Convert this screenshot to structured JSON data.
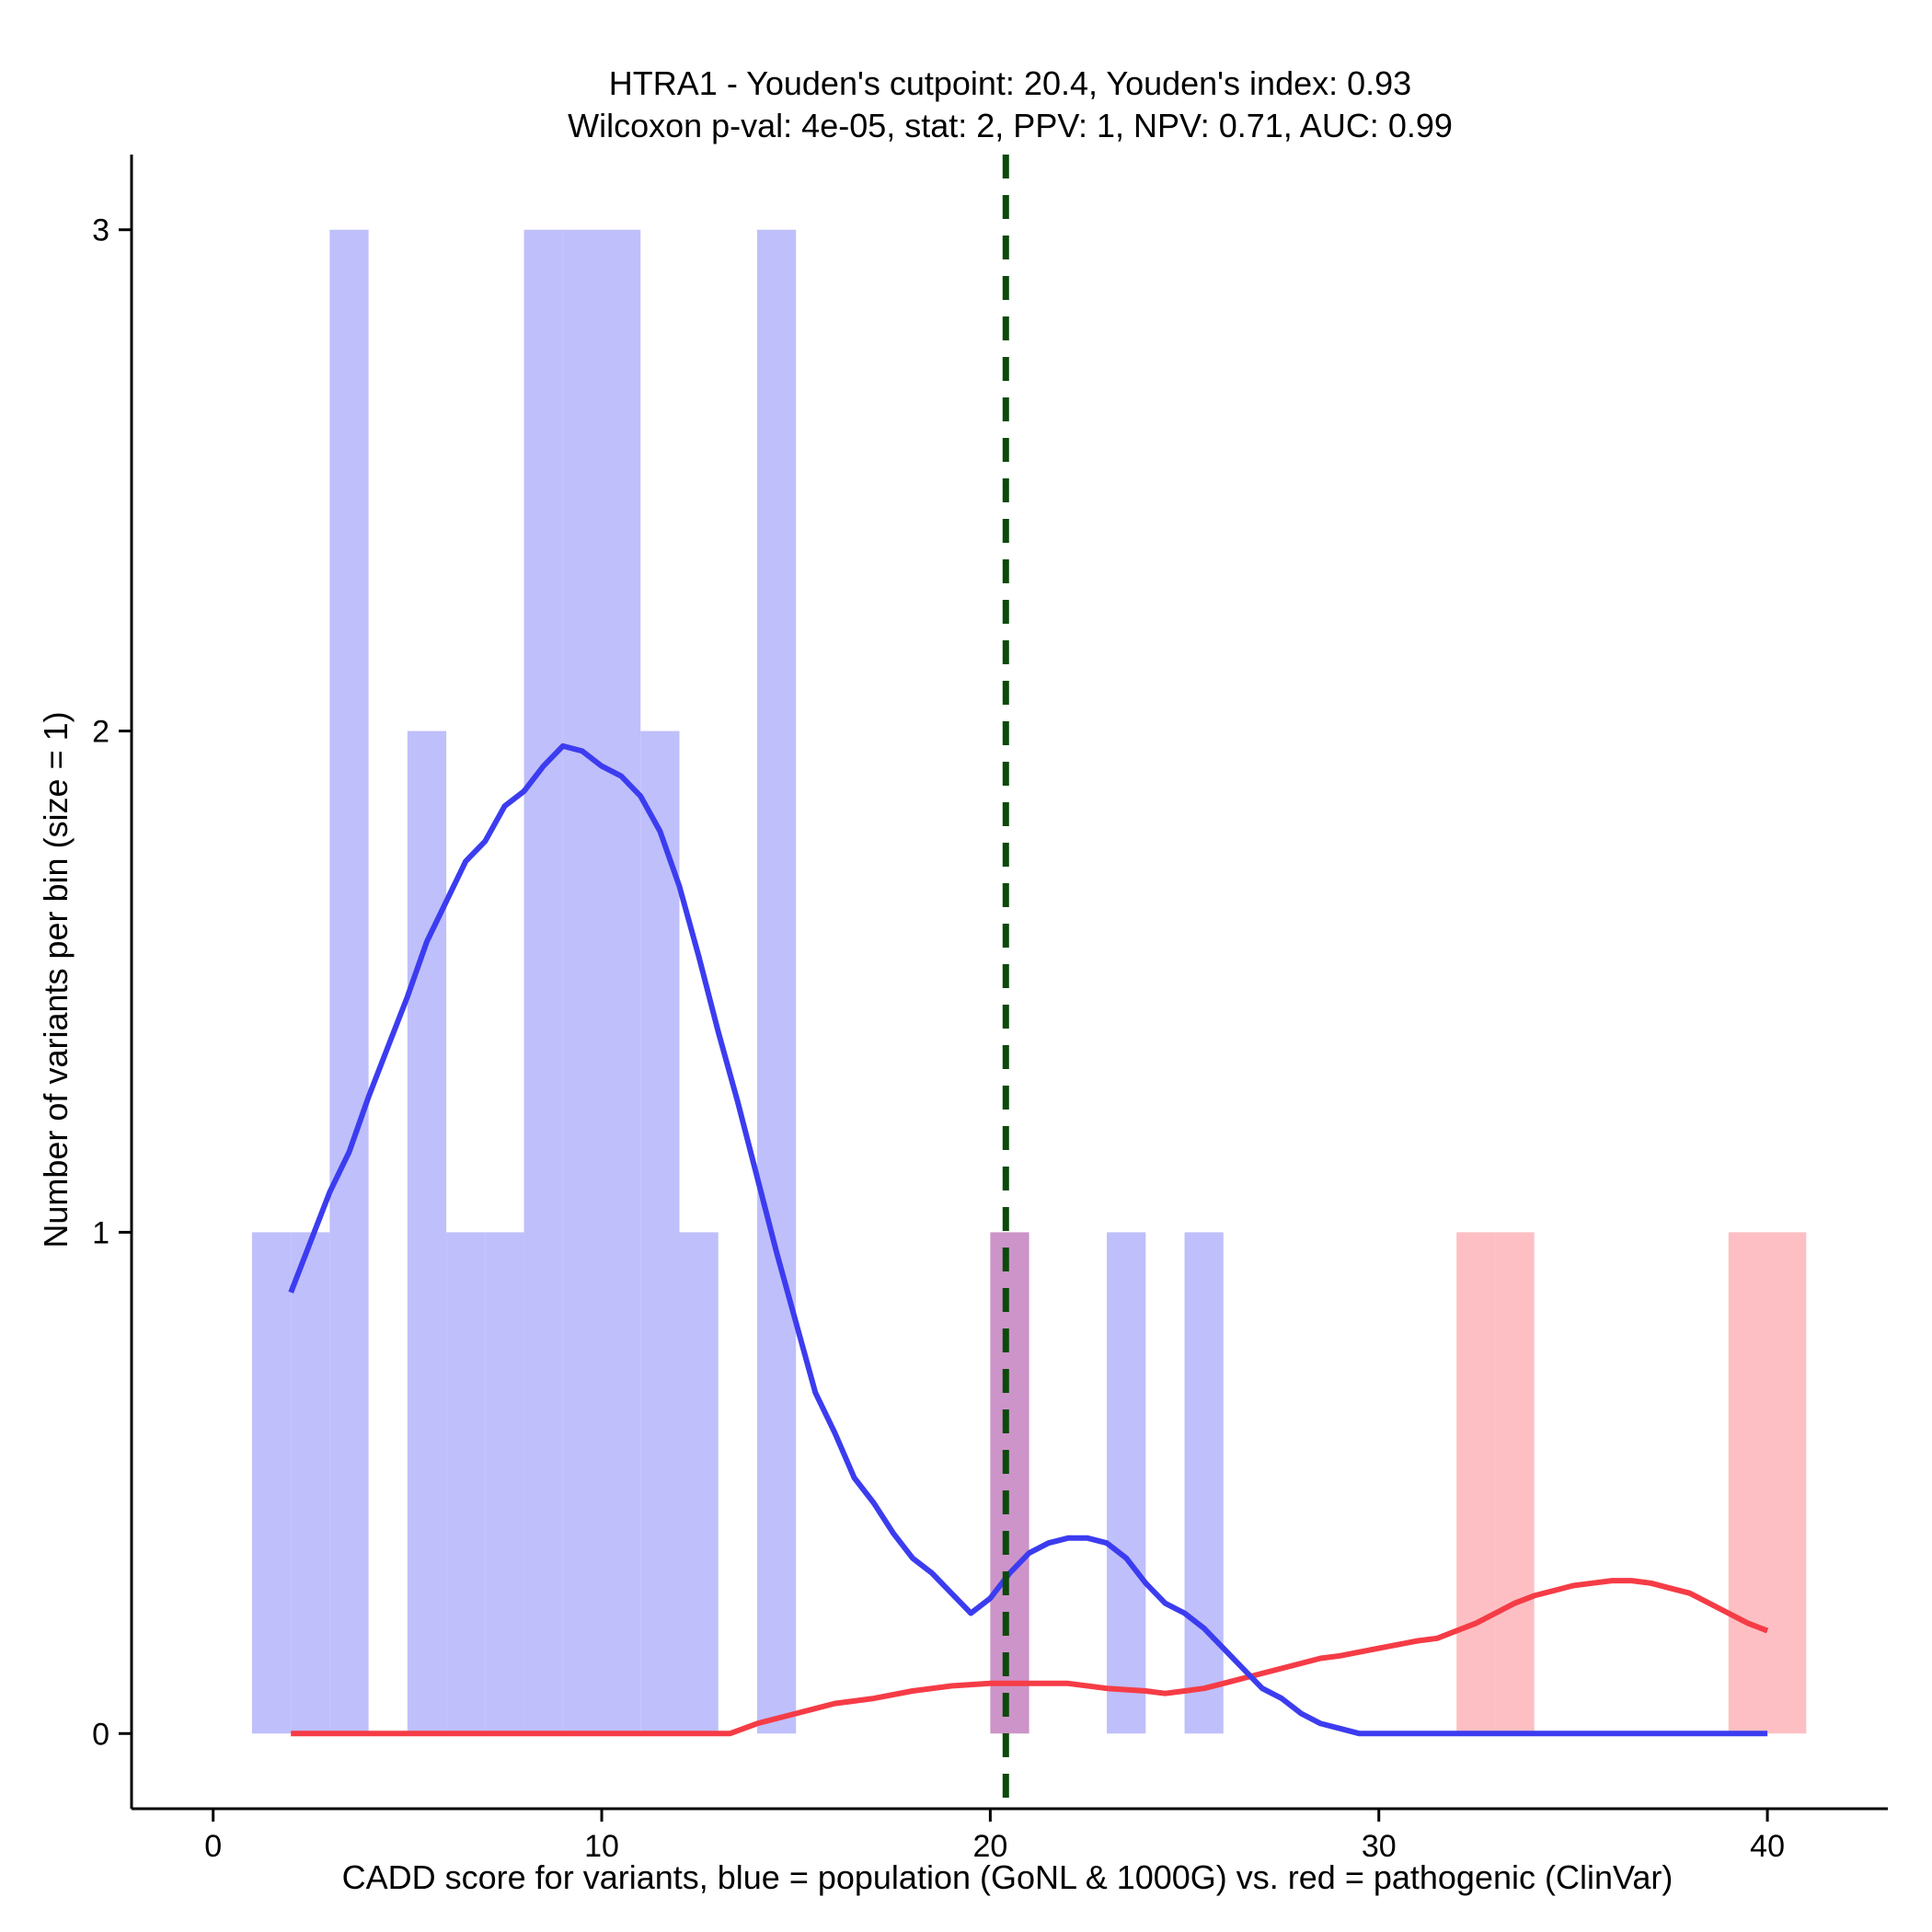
{
  "chart_data": {
    "type": "histogram-density",
    "title_line1": "HTRA1 - Youden's cutpoint: 20.4, Youden's index: 0.93",
    "title_line2": "Wilcoxon p-val: 4e-05, stat: 2, PPV: 1, NPV: 0.71, AUC: 0.99",
    "xlabel": "CADD score for variants, blue = population (GoNL & 1000G) vs. red = pathogenic (ClinVar)",
    "ylabel": "Number of variants per bin (size = 1)",
    "xlim": [
      -2.1,
      43.1
    ],
    "ylim": [
      -0.15,
      3.15
    ],
    "x_ticks": [
      0,
      10,
      20,
      30,
      40
    ],
    "x_tick_labels": [
      "0",
      "10",
      "20",
      "30",
      "40"
    ],
    "y_ticks": [
      0,
      1,
      2,
      3
    ],
    "y_tick_labels": [
      "0",
      "1",
      "2",
      "3"
    ],
    "bin_size": 1,
    "cutpoint": 20.4,
    "colors": {
      "population_bar": "#bfbffb",
      "pathogenic_bar": "#fdbfc3",
      "overlap_bar": "#cc94c8",
      "population_line": "#3c3cf0",
      "pathogenic_line": "#f53c46",
      "cutpoint_line": "#0a4a0a"
    },
    "series": [
      {
        "name": "population (GoNL & 1000G)",
        "kind": "histogram",
        "bins": [
          {
            "start": 1,
            "count": 1
          },
          {
            "start": 2,
            "count": 1
          },
          {
            "start": 3,
            "count": 3
          },
          {
            "start": 5,
            "count": 2
          },
          {
            "start": 6,
            "count": 1
          },
          {
            "start": 7,
            "count": 1
          },
          {
            "start": 8,
            "count": 3
          },
          {
            "start": 9,
            "count": 3
          },
          {
            "start": 10,
            "count": 3
          },
          {
            "start": 11,
            "count": 2
          },
          {
            "start": 12,
            "count": 1
          },
          {
            "start": 14,
            "count": 3
          },
          {
            "start": 20,
            "count": 1
          },
          {
            "start": 23,
            "count": 1
          },
          {
            "start": 25,
            "count": 1
          }
        ]
      },
      {
        "name": "pathogenic (ClinVar)",
        "kind": "histogram",
        "bins": [
          {
            "start": 20,
            "count": 1
          },
          {
            "start": 32,
            "count": 1
          },
          {
            "start": 33,
            "count": 1
          },
          {
            "start": 39,
            "count": 1
          },
          {
            "start": 40,
            "count": 1
          }
        ]
      },
      {
        "name": "population density",
        "kind": "line",
        "x": [
          2,
          2.5,
          3,
          3.5,
          4,
          4.5,
          5,
          5.5,
          6,
          6.5,
          7,
          7.5,
          8,
          8.5,
          9,
          9.5,
          10,
          10.5,
          11,
          11.5,
          12,
          12.5,
          13,
          13.5,
          14,
          14.5,
          15,
          15.5,
          16,
          16.5,
          17,
          17.5,
          18,
          18.5,
          19,
          19.5,
          20,
          20.5,
          21,
          21.5,
          22,
          22.5,
          23,
          23.5,
          24,
          24.5,
          25,
          25.5,
          26,
          26.5,
          27,
          27.5,
          28,
          28.5,
          29,
          29.5,
          30,
          31,
          32,
          33,
          34,
          35,
          36,
          37,
          38,
          39,
          40
        ],
        "y": [
          0.88,
          0.98,
          1.08,
          1.16,
          1.27,
          1.37,
          1.47,
          1.58,
          1.66,
          1.74,
          1.78,
          1.85,
          1.88,
          1.93,
          1.97,
          1.96,
          1.93,
          1.91,
          1.87,
          1.8,
          1.69,
          1.55,
          1.4,
          1.26,
          1.11,
          0.96,
          0.82,
          0.68,
          0.6,
          0.51,
          0.46,
          0.4,
          0.35,
          0.32,
          0.28,
          0.24,
          0.27,
          0.32,
          0.36,
          0.38,
          0.39,
          0.39,
          0.38,
          0.35,
          0.3,
          0.26,
          0.24,
          0.21,
          0.17,
          0.13,
          0.09,
          0.07,
          0.04,
          0.02,
          0.01,
          0.0,
          0.0,
          0.0,
          0.0,
          0.0,
          0.0,
          0.0,
          0.0,
          0.0,
          0.0,
          0.0,
          0.0
        ]
      },
      {
        "name": "pathogenic density",
        "kind": "line",
        "x": [
          2,
          4,
          6,
          8,
          10,
          12,
          13,
          13.3,
          14,
          15,
          16,
          17,
          18,
          19,
          20,
          21,
          22,
          23,
          24,
          24.5,
          25,
          25.5,
          26,
          27,
          28,
          28.5,
          29,
          30,
          31,
          31.5,
          32,
          32.5,
          33,
          33.5,
          34,
          34.5,
          35,
          35.5,
          36,
          36.5,
          37,
          37.5,
          38,
          38.5,
          39,
          39.5,
          40
        ],
        "y": [
          0.0,
          0.0,
          0.0,
          0.0,
          0.0,
          0.0,
          0.0,
          0.0,
          0.02,
          0.04,
          0.06,
          0.07,
          0.085,
          0.095,
          0.1,
          0.1,
          0.1,
          0.09,
          0.085,
          0.08,
          0.085,
          0.09,
          0.1,
          0.12,
          0.14,
          0.15,
          0.155,
          0.17,
          0.185,
          0.19,
          0.205,
          0.22,
          0.24,
          0.26,
          0.275,
          0.285,
          0.295,
          0.3,
          0.305,
          0.305,
          0.3,
          0.29,
          0.28,
          0.26,
          0.24,
          0.22,
          0.205
        ]
      }
    ]
  }
}
